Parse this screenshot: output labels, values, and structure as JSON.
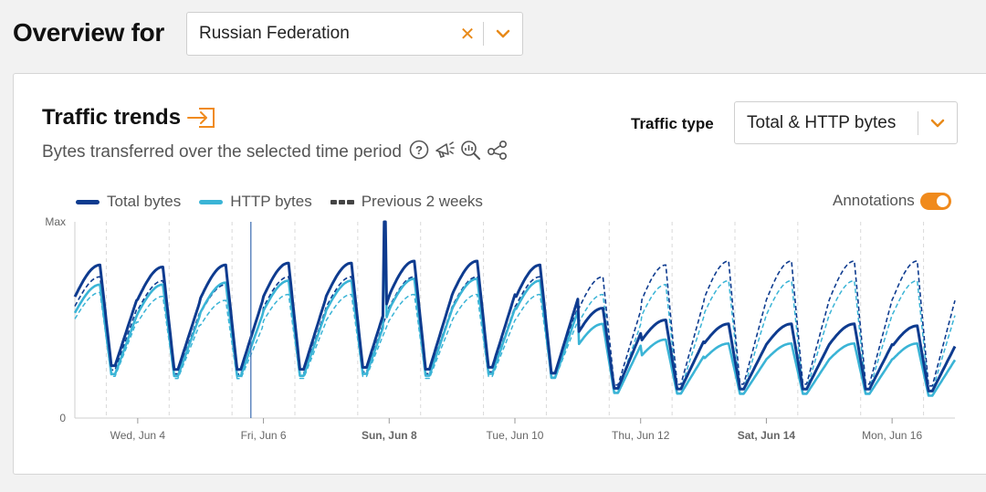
{
  "header": {
    "title": "Overview for"
  },
  "country_select": {
    "value": "Russian Federation",
    "clear_glyph": "✕"
  },
  "card": {
    "title": "Traffic trends",
    "subtitle": "Bytes transferred over the selected time period",
    "traffic_type_label": "Traffic type",
    "traffic_type_value": "Total & HTTP bytes",
    "annotations_label": "Annotations",
    "annotations_on": true
  },
  "colors": {
    "total": "#0e3b8f",
    "http": "#3ab4d6",
    "accent": "#f08a1c",
    "grid": "#d9d9d9"
  },
  "icons": [
    "export-icon",
    "help-icon",
    "announcement-icon",
    "zoom-chart-icon",
    "share-icon",
    "chevron-down-icon",
    "clear-icon"
  ],
  "chart_data": {
    "type": "line",
    "ylabel_top": "Max",
    "ylabel_bottom": "0",
    "ylim": [
      0,
      1
    ],
    "xlim": [
      0,
      14
    ],
    "x_ticks": [
      {
        "x": 1,
        "label": "Wed, Jun 4",
        "bold": false
      },
      {
        "x": 3,
        "label": "Fri, Jun 6",
        "bold": false
      },
      {
        "x": 5,
        "label": "Sun, Jun 8",
        "bold": true
      },
      {
        "x": 7,
        "label": "Tue, Jun 10",
        "bold": false
      },
      {
        "x": 9,
        "label": "Thu, Jun 12",
        "bold": false
      },
      {
        "x": 11,
        "label": "Sat, Jun 14",
        "bold": true
      },
      {
        "x": 13,
        "label": "Mon, Jun 16",
        "bold": false
      }
    ],
    "annotation_marker_x": 2.8,
    "series": [
      {
        "name": "Total bytes",
        "style": "solid",
        "daily_low": [
          0.24,
          0.22,
          0.22,
          0.22,
          0.23,
          0.22,
          0.23,
          0.2,
          0.13,
          0.13,
          0.13,
          0.13,
          0.13,
          0.12,
          0.12
        ],
        "daily_high": [
          0.78,
          0.77,
          0.78,
          0.79,
          0.79,
          0.8,
          0.8,
          0.78,
          0.56,
          0.5,
          0.48,
          0.48,
          0.48,
          0.47,
          0.56
        ],
        "spike": {
          "x": 4.92,
          "y": 1.0
        }
      },
      {
        "name": "HTTP bytes",
        "style": "solid",
        "daily_low": [
          0.2,
          0.19,
          0.19,
          0.19,
          0.2,
          0.19,
          0.2,
          0.18,
          0.11,
          0.11,
          0.11,
          0.11,
          0.11,
          0.1,
          0.1
        ],
        "daily_high": [
          0.68,
          0.68,
          0.69,
          0.7,
          0.7,
          0.71,
          0.71,
          0.7,
          0.48,
          0.4,
          0.38,
          0.38,
          0.38,
          0.38,
          0.44
        ],
        "spike": {
          "x": 4.92,
          "y": 0.88
        }
      },
      {
        "name": "Previous 2 weeks",
        "style": "dashed",
        "daily_low": [
          0.22,
          0.2,
          0.2,
          0.2,
          0.21,
          0.2,
          0.21,
          0.2,
          0.14,
          0.14,
          0.14,
          0.14,
          0.14,
          0.13,
          0.13
        ],
        "daily_high": [
          0.72,
          0.7,
          0.68,
          0.72,
          0.72,
          0.72,
          0.72,
          0.72,
          0.72,
          0.78,
          0.8,
          0.8,
          0.8,
          0.8,
          0.8
        ]
      },
      {
        "name": "Previous 2 weeks HTTP",
        "style": "dashed",
        "daily_low": [
          0.19,
          0.18,
          0.18,
          0.18,
          0.19,
          0.18,
          0.19,
          0.18,
          0.12,
          0.12,
          0.12,
          0.12,
          0.12,
          0.11,
          0.11
        ],
        "daily_high": [
          0.64,
          0.62,
          0.6,
          0.63,
          0.63,
          0.63,
          0.63,
          0.63,
          0.63,
          0.68,
          0.7,
          0.7,
          0.7,
          0.7,
          0.7
        ]
      }
    ]
  }
}
